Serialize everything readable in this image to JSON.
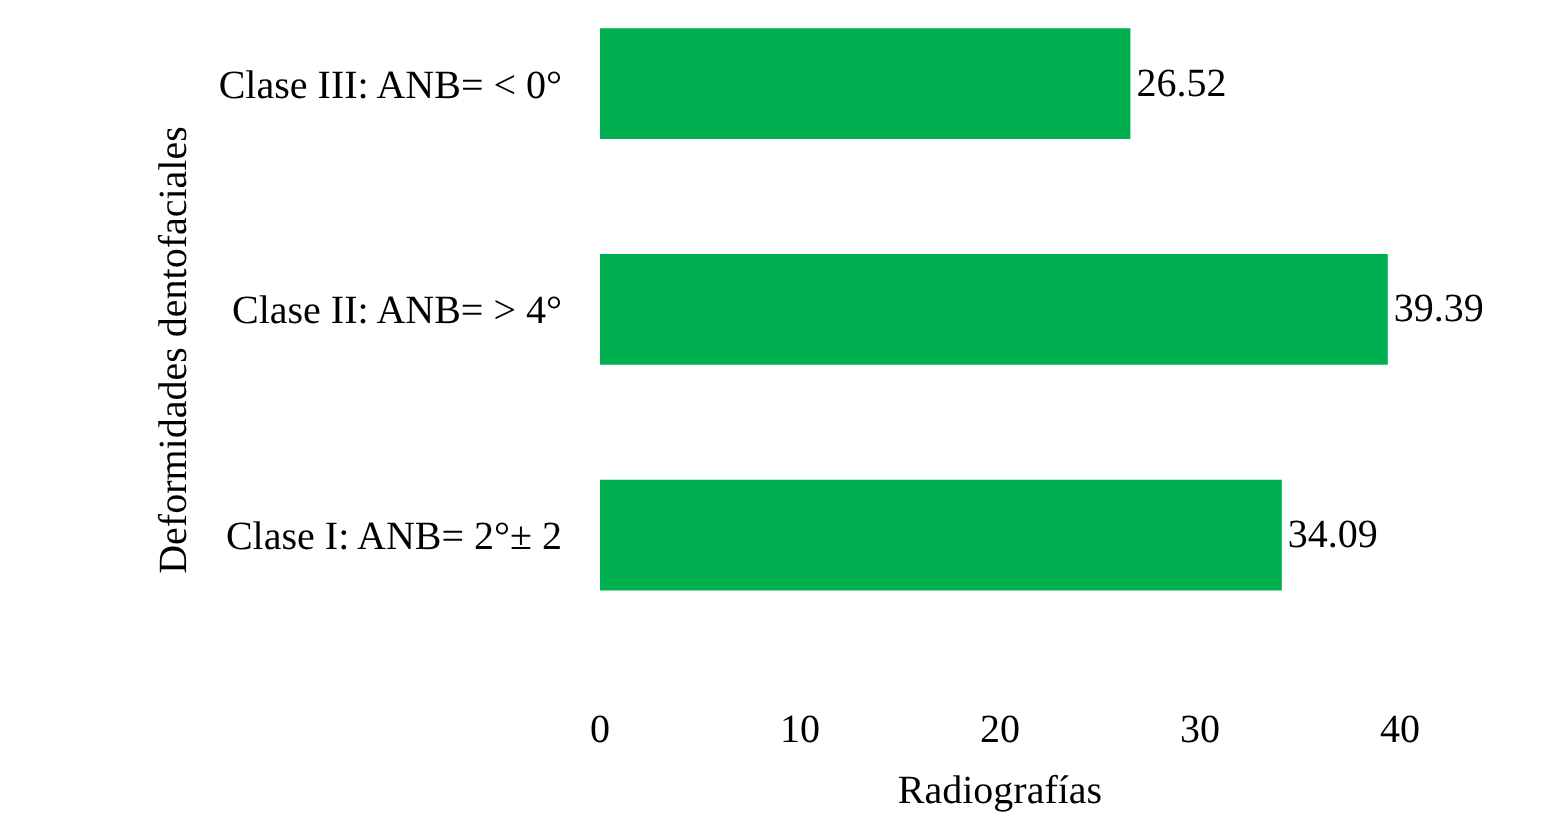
{
  "chart_data": {
    "type": "bar",
    "orientation": "horizontal",
    "categories": [
      "Clase III: ANB= < 0°",
      "Clase II: ANB= > 4°",
      "Clase I: ANB= 2°± 2"
    ],
    "values": [
      26.52,
      39.39,
      34.09
    ],
    "color": "#00b050",
    "data_labels": true,
    "xlim": [
      0,
      40
    ],
    "xticks": [
      0,
      10,
      20,
      30,
      40
    ],
    "xlabel": "Radiografías",
    "ylabel": "Deformidades dentofaciales",
    "grid": false,
    "legend": false
  }
}
